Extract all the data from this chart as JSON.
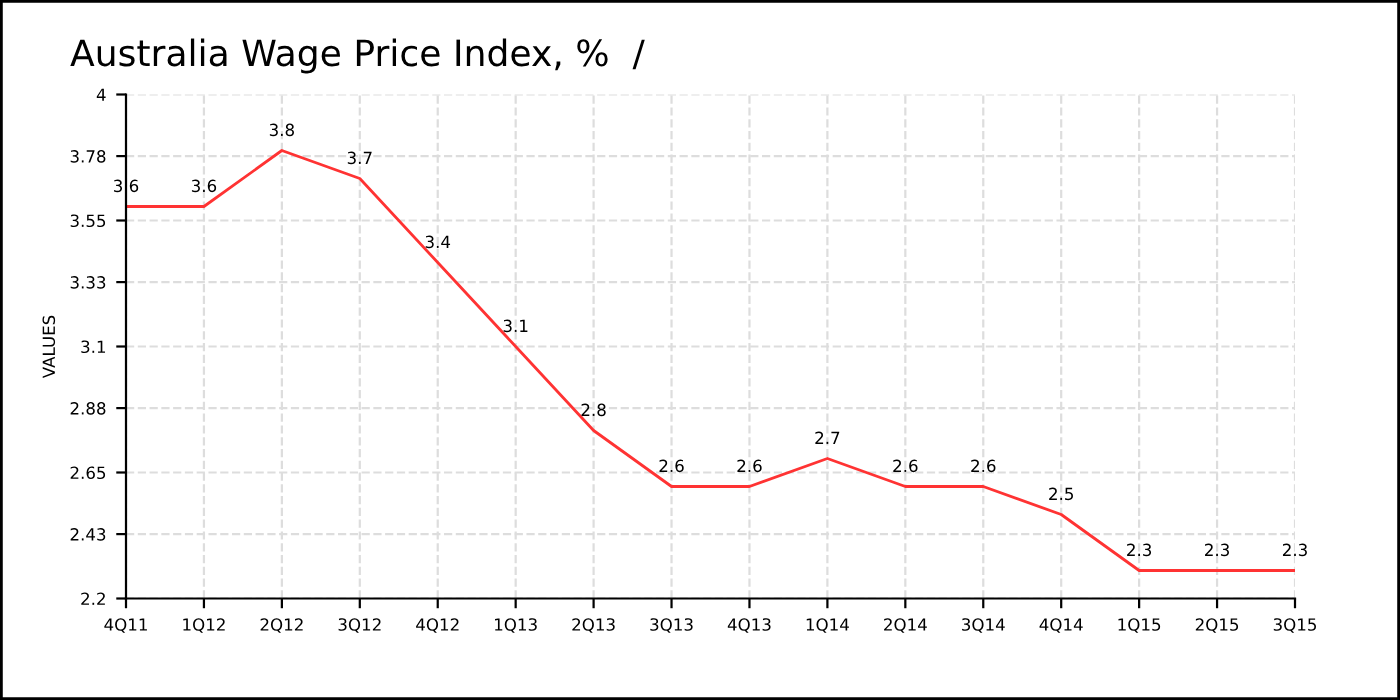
{
  "chart_data": {
    "type": "line",
    "title": "Australia Wage Price Index, %  /",
    "ylabel": "VALUES",
    "categories": [
      "4Q11",
      "1Q12",
      "2Q12",
      "3Q12",
      "4Q12",
      "1Q13",
      "2Q13",
      "3Q13",
      "4Q13",
      "1Q14",
      "2Q14",
      "3Q14",
      "4Q14",
      "1Q15",
      "2Q15",
      "3Q15"
    ],
    "series": [
      {
        "color": "#ff3333",
        "values": [
          3.6,
          3.6,
          3.8,
          3.7,
          3.4,
          3.1,
          2.8,
          2.6,
          2.6,
          2.7,
          2.6,
          2.6,
          2.5,
          2.3,
          2.3,
          2.3
        ]
      }
    ],
    "ylim": [
      2.2,
      4
    ],
    "yticks": [
      2.2,
      2.43,
      2.65,
      2.88,
      3.1,
      3.33,
      3.55,
      3.78,
      4
    ],
    "data_labels": true,
    "grid": true,
    "line_style": "solid",
    "marker": "none"
  }
}
